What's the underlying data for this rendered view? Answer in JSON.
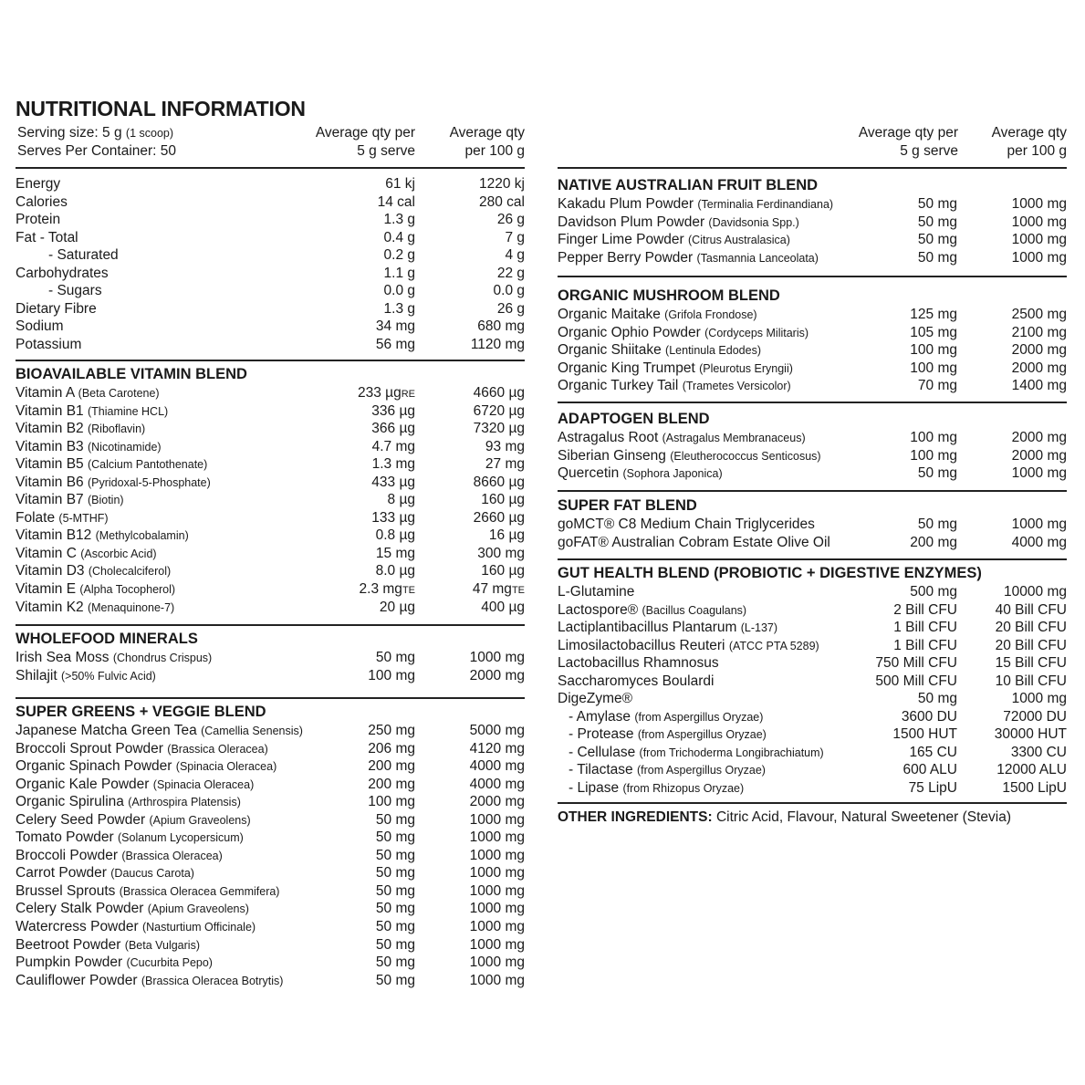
{
  "title": "NUTRITIONAL INFORMATION",
  "header": {
    "serving_size": "Serving size: 5 g",
    "serving_note": "(1 scoop)",
    "serves_per_container": "Serves Per Container: 50",
    "col1_line1": "Average qty per",
    "col1_line2": "5 g serve",
    "col2_line1": "Average qty",
    "col2_line2": "per 100 g"
  },
  "left_sections": [
    {
      "title": "",
      "rows": [
        {
          "name": "Energy",
          "serve": "61 kj",
          "per100": "1220 kj"
        },
        {
          "name": "Calories",
          "serve": "14 cal",
          "per100": "280 cal"
        },
        {
          "name": "Protein",
          "serve": "1.3 g",
          "per100": "26 g"
        },
        {
          "name": "Fat  - Total",
          "serve": "0.4 g",
          "per100": "7 g"
        },
        {
          "name": "- Saturated",
          "level": 1,
          "serve": "0.2 g",
          "per100": "4 g"
        },
        {
          "name": "Carbohydrates",
          "serve": "1.1 g",
          "per100": "22 g"
        },
        {
          "name": "- Sugars",
          "level": 1,
          "serve": "0.0 g",
          "per100": "0.0 g"
        },
        {
          "name": "Dietary Fibre",
          "serve": "1.3 g",
          "per100": "26 g"
        },
        {
          "name": "Sodium",
          "serve": "34 mg",
          "per100": "680 mg"
        },
        {
          "name": "Potassium",
          "serve": "56 mg",
          "per100": "1120 mg"
        }
      ]
    },
    {
      "title": "BIOAVAILABLE VITAMIN BLEND",
      "rows": [
        {
          "name": "Vitamin A",
          "note": "(Beta Carotene)",
          "serve": "233 µg",
          "serve_sub": "RE",
          "per100": "4660 µg"
        },
        {
          "name": "Vitamin B1",
          "note": "(Thiamine HCL)",
          "serve": "336 µg",
          "per100": "6720 µg"
        },
        {
          "name": "Vitamin B2",
          "note": "(Riboflavin)",
          "serve": "366 µg",
          "per100": "7320 µg"
        },
        {
          "name": "Vitamin B3",
          "note": "(Nicotinamide)",
          "serve": "4.7 mg",
          "per100": "93 mg"
        },
        {
          "name": "Vitamin B5",
          "note": "(Calcium Pantothenate)",
          "serve": "1.3 mg",
          "per100": "27 mg"
        },
        {
          "name": "Vitamin B6",
          "note": "(Pyridoxal-5-Phosphate)",
          "serve": "433 µg",
          "per100": "8660 µg"
        },
        {
          "name": "Vitamin B7",
          "note": "(Biotin)",
          "serve": "8 µg",
          "per100": "160 µg"
        },
        {
          "name": "Folate",
          "note": "(5-MTHF)",
          "serve": "133 µg",
          "per100": "2660 µg"
        },
        {
          "name": "Vitamin B12",
          "note": "(Methylcobalamin)",
          "serve": "0.8 µg",
          "per100": "16 µg"
        },
        {
          "name": "Vitamin C",
          "note": "(Ascorbic Acid)",
          "serve": "15 mg",
          "per100": "300 mg"
        },
        {
          "name": "Vitamin D3",
          "note": "(Cholecalciferol)",
          "serve": "8.0 µg",
          "per100": "160 µg"
        },
        {
          "name": "Vitamin E",
          "note": "(Alpha Tocopherol)",
          "serve": "2.3 mg",
          "serve_sub": "TE",
          "per100": "47 mg",
          "per100_sub": "TE"
        },
        {
          "name": "Vitamin K2",
          "note": "(Menaquinone-7)",
          "serve": "20 µg",
          "per100": "400 µg"
        }
      ]
    },
    {
      "title": "WHOLEFOOD MINERALS",
      "rows": [
        {
          "name": "Irish Sea Moss",
          "note": "(Chondrus Crispus)",
          "serve": "50 mg",
          "per100": "1000 mg"
        },
        {
          "name": "Shilajit",
          "note": "(>50% Fulvic Acid)",
          "serve": "100 mg",
          "per100": "2000 mg"
        }
      ]
    },
    {
      "title": "SUPER GREENS + VEGGIE BLEND",
      "rows": [
        {
          "name": "Japanese Matcha Green Tea",
          "note": "(Camellia Senensis)",
          "serve": "250 mg",
          "per100": "5000 mg"
        },
        {
          "name": "Broccoli Sprout Powder",
          "note": "(Brassica Oleracea)",
          "serve": "206 mg",
          "per100": "4120 mg"
        },
        {
          "name": "Organic Spinach Powder",
          "note": "(Spinacia Oleracea)",
          "serve": "200 mg",
          "per100": "4000 mg"
        },
        {
          "name": "Organic Kale Powder",
          "note": "(Spinacia Oleracea)",
          "serve": "200 mg",
          "per100": "4000 mg"
        },
        {
          "name": "Organic Spirulina",
          "note": "(Arthrospira Platensis)",
          "serve": "100 mg",
          "per100": "2000 mg"
        },
        {
          "name": "Celery Seed Powder",
          "note": "(Apium Graveolens)",
          "serve": "50 mg",
          "per100": "1000 mg"
        },
        {
          "name": "Tomato Powder",
          "note": "(Solanum Lycopersicum)",
          "serve": "50 mg",
          "per100": "1000 mg"
        },
        {
          "name": "Broccoli Powder",
          "note": "(Brassica Oleracea)",
          "serve": "50 mg",
          "per100": "1000 mg"
        },
        {
          "name": "Carrot Powder",
          "note": "(Daucus Carota)",
          "serve": "50 mg",
          "per100": "1000 mg"
        },
        {
          "name": "Brussel Sprouts",
          "note": "(Brassica Oleracea Gemmifera)",
          "serve": "50 mg",
          "per100": "1000 mg"
        },
        {
          "name": "Celery Stalk Powder",
          "note": "(Apium Graveolens)",
          "serve": "50 mg",
          "per100": "1000 mg"
        },
        {
          "name": "Watercress Powder",
          "note": "(Nasturtium Officinale)",
          "serve": "50 mg",
          "per100": "1000 mg"
        },
        {
          "name": "Beetroot Powder",
          "note": "(Beta Vulgaris)",
          "serve": "50 mg",
          "per100": "1000 mg"
        },
        {
          "name": "Pumpkin Powder",
          "note": "(Cucurbita Pepo)",
          "serve": "50 mg",
          "per100": "1000 mg"
        },
        {
          "name": "Cauliflower Powder",
          "note": "(Brassica Oleracea Botrytis)",
          "serve": "50 mg",
          "per100": "1000 mg"
        }
      ]
    }
  ],
  "right_sections": [
    {
      "title": "NATIVE AUSTRALIAN FRUIT BLEND",
      "rows": [
        {
          "name": "Kakadu Plum Powder",
          "note": "(Terminalia Ferdinandiana)",
          "serve": "50 mg",
          "per100": "1000 mg"
        },
        {
          "name": "Davidson Plum Powder",
          "note": "(Davidsonia Spp.)",
          "serve": "50 mg",
          "per100": "1000 mg"
        },
        {
          "name": "Finger Lime Powder",
          "note": "(Citrus Australasica)",
          "serve": "50 mg",
          "per100": "1000 mg"
        },
        {
          "name": "Pepper Berry Powder",
          "note": "(Tasmannia Lanceolata)",
          "serve": "50 mg",
          "per100": "1000 mg"
        }
      ]
    },
    {
      "title": "ORGANIC MUSHROOM BLEND",
      "rows": [
        {
          "name": "Organic Maitake",
          "note": "(Grifola Frondose)",
          "serve": "125 mg",
          "per100": "2500 mg"
        },
        {
          "name": "Organic Ophio Powder",
          "note": "(Cordyceps Militaris)",
          "serve": "105 mg",
          "per100": "2100 mg"
        },
        {
          "name": "Organic Shiitake",
          "note": "(Lentinula Edodes)",
          "serve": "100 mg",
          "per100": "2000 mg"
        },
        {
          "name": "Organic King Trumpet",
          "note": "(Pleurotus Eryngii)",
          "serve": "100 mg",
          "per100": "2000 mg"
        },
        {
          "name": "Organic Turkey Tail",
          "note": "(Trametes Versicolor)",
          "serve": "70 mg",
          "per100": "1400 mg"
        }
      ]
    },
    {
      "title": "ADAPTOGEN BLEND",
      "rows": [
        {
          "name": "Astragalus Root",
          "note": "(Astragalus Membranaceus)",
          "serve": "100 mg",
          "per100": "2000 mg"
        },
        {
          "name": "Siberian Ginseng",
          "note": "(Eleutherococcus Senticosus)",
          "serve": "100 mg",
          "per100": "2000 mg"
        },
        {
          "name": "Quercetin",
          "note": "(Sophora Japonica)",
          "serve": "50 mg",
          "per100": "1000 mg"
        }
      ]
    },
    {
      "title": "SUPER FAT BLEND",
      "rows": [
        {
          "name": "goMCT® C8 Medium Chain Triglycerides",
          "serve": "50 mg",
          "per100": "1000 mg"
        },
        {
          "name": "goFAT® Australian Cobram Estate Olive Oil",
          "serve": "200 mg",
          "per100": "4000 mg"
        }
      ]
    },
    {
      "title": "GUT HEALTH BLEND (PROBIOTIC + DIGESTIVE ENZYMES)",
      "rows": [
        {
          "name": "L-Glutamine",
          "serve": "500 mg",
          "per100": "10000 mg"
        },
        {
          "name": "Lactospore®",
          "note": "(Bacillus Coagulans)",
          "serve": "2 Bill CFU",
          "per100": "40 Bill CFU"
        },
        {
          "name": "Lactiplantibacillus Plantarum",
          "note": "(L-137)",
          "serve": "1 Bill CFU",
          "per100": "20 Bill CFU"
        },
        {
          "name": "Limosilactobacillus Reuteri",
          "note": "(ATCC PTA 5289)",
          "serve": "1 Bill CFU",
          "per100": "20 Bill CFU"
        },
        {
          "name": "Lactobacillus Rhamnosus",
          "serve": "750 Mill CFU",
          "per100": "15 Bill CFU"
        },
        {
          "name": "Saccharomyces Boulardi",
          "serve": "500 Mill CFU",
          "per100": "10 Bill CFU"
        },
        {
          "name": "DigeZyme®",
          "serve": "50 mg",
          "per100": "1000 mg"
        },
        {
          "name": "- Amylase",
          "level": 2,
          "note": "(from Aspergillus Oryzae)",
          "serve": "3600 DU",
          "per100": "72000 DU"
        },
        {
          "name": "- Protease",
          "level": 2,
          "note": "(from Aspergillus Oryzae)",
          "serve": "1500 HUT",
          "per100": "30000 HUT"
        },
        {
          "name": "- Cellulase",
          "level": 2,
          "note": "(from Trichoderma Longibrachiatum)",
          "serve": "165 CU",
          "per100": "3300 CU"
        },
        {
          "name": "- Tilactase",
          "level": 2,
          "note": "(from Aspergillus Oryzae)",
          "serve": "600 ALU",
          "per100": "12000 ALU"
        },
        {
          "name": "- Lipase",
          "level": 2,
          "note": "(from Rhizopus Oryzae)",
          "serve": "75 LipU",
          "per100": "1500 LipU"
        }
      ]
    }
  ],
  "other_ingredients": {
    "label": "OTHER INGREDIENTS:",
    "text": " Citric Acid, Flavour, Natural Sweetener (Stevia)"
  }
}
